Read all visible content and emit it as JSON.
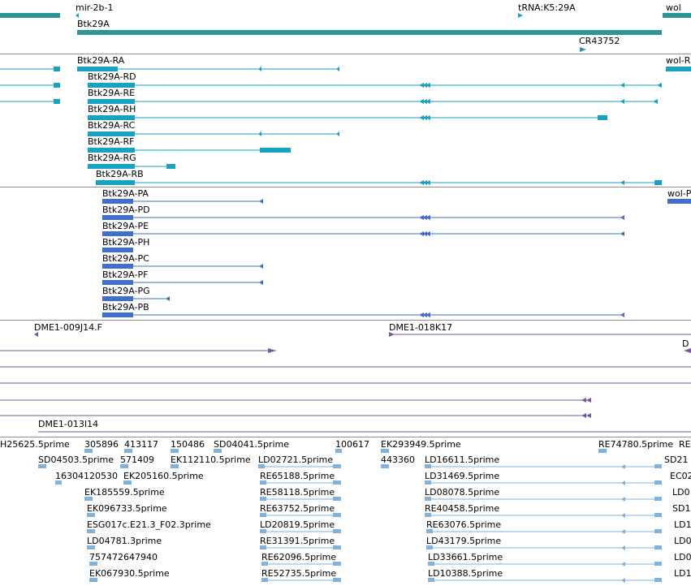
{
  "colors": {
    "gene": "#2E9495",
    "transcript": "#17A2C2",
    "protein": "#3F6FCC",
    "clone": "#7B56A6",
    "est": "#7FB2DD",
    "divider": "#8f8f8f"
  },
  "tracks": {
    "genes": [
      {
        "label": "mir-2b-1"
      },
      {
        "label": "tRNA:K5:29A"
      },
      {
        "label": "wol"
      },
      {
        "label": "Btk29A"
      },
      {
        "label": "CR43752"
      }
    ],
    "transcripts": [
      {
        "label": "Btk29A-RA"
      },
      {
        "label": "wol-R"
      },
      {
        "label": "Btk29A-RD"
      },
      {
        "label": "Btk29A-RE"
      },
      {
        "label": "Btk29A-RH"
      },
      {
        "label": "Btk29A-RC"
      },
      {
        "label": "Btk29A-RF"
      },
      {
        "label": "Btk29A-RG"
      },
      {
        "label": "Btk29A-RB"
      }
    ],
    "proteins": [
      {
        "label": "Btk29A-PA"
      },
      {
        "label": "wol-P"
      },
      {
        "label": "Btk29A-PD"
      },
      {
        "label": "Btk29A-PE"
      },
      {
        "label": "Btk29A-PH"
      },
      {
        "label": "Btk29A-PC"
      },
      {
        "label": "Btk29A-PF"
      },
      {
        "label": "Btk29A-PG"
      },
      {
        "label": "Btk29A-PB"
      }
    ],
    "clones": [
      {
        "label": "DME1-009J14.F"
      },
      {
        "label": "DME1-018K17"
      },
      {
        "label": "D"
      },
      {
        "label": "DME1-013I14"
      }
    ],
    "ests": [
      {
        "label": "H25625.5prime"
      },
      {
        "label": "305896"
      },
      {
        "label": "413117"
      },
      {
        "label": "150486"
      },
      {
        "label": "SD04041.5prime"
      },
      {
        "label": "100617"
      },
      {
        "label": "EK293949.5prime"
      },
      {
        "label": "RE74780.5prime"
      },
      {
        "label": "RE"
      },
      {
        "label": "SD04503.5prime"
      },
      {
        "label": "571409"
      },
      {
        "label": "EK112110.5prime"
      },
      {
        "label": "LD02721.5prime"
      },
      {
        "label": "443360"
      },
      {
        "label": "LD16611.5prime"
      },
      {
        "label": "SD21"
      },
      {
        "label": "16304120530"
      },
      {
        "label": "EK205160.5prime"
      },
      {
        "label": "RE65188.5prime"
      },
      {
        "label": "LD31469.5prime"
      },
      {
        "label": "EC02"
      },
      {
        "label": "EK185559.5prime"
      },
      {
        "label": "RE58118.5prime"
      },
      {
        "label": "LD08078.5prime"
      },
      {
        "label": "LD0"
      },
      {
        "label": "EK096733.5prime"
      },
      {
        "label": "RE63752.5prime"
      },
      {
        "label": "RE40458.5prime"
      },
      {
        "label": "SD1"
      },
      {
        "label": "ESG017c.E21.3_F02.3prime"
      },
      {
        "label": "LD20819.5prime"
      },
      {
        "label": "RE63076.5prime"
      },
      {
        "label": "LD1"
      },
      {
        "label": "LD04781.3prime"
      },
      {
        "label": "RE31391.5prime"
      },
      {
        "label": "LD43179.5prime"
      },
      {
        "label": "LD0"
      },
      {
        "label": "757472647940"
      },
      {
        "label": "RE62096.5prime"
      },
      {
        "label": "LD33661.5prime"
      },
      {
        "label": "LD0"
      },
      {
        "label": "EK067930.5prime"
      },
      {
        "label": "RE52735.5prime"
      },
      {
        "label": "LD10388.5prime"
      },
      {
        "label": "LD1"
      }
    ]
  }
}
